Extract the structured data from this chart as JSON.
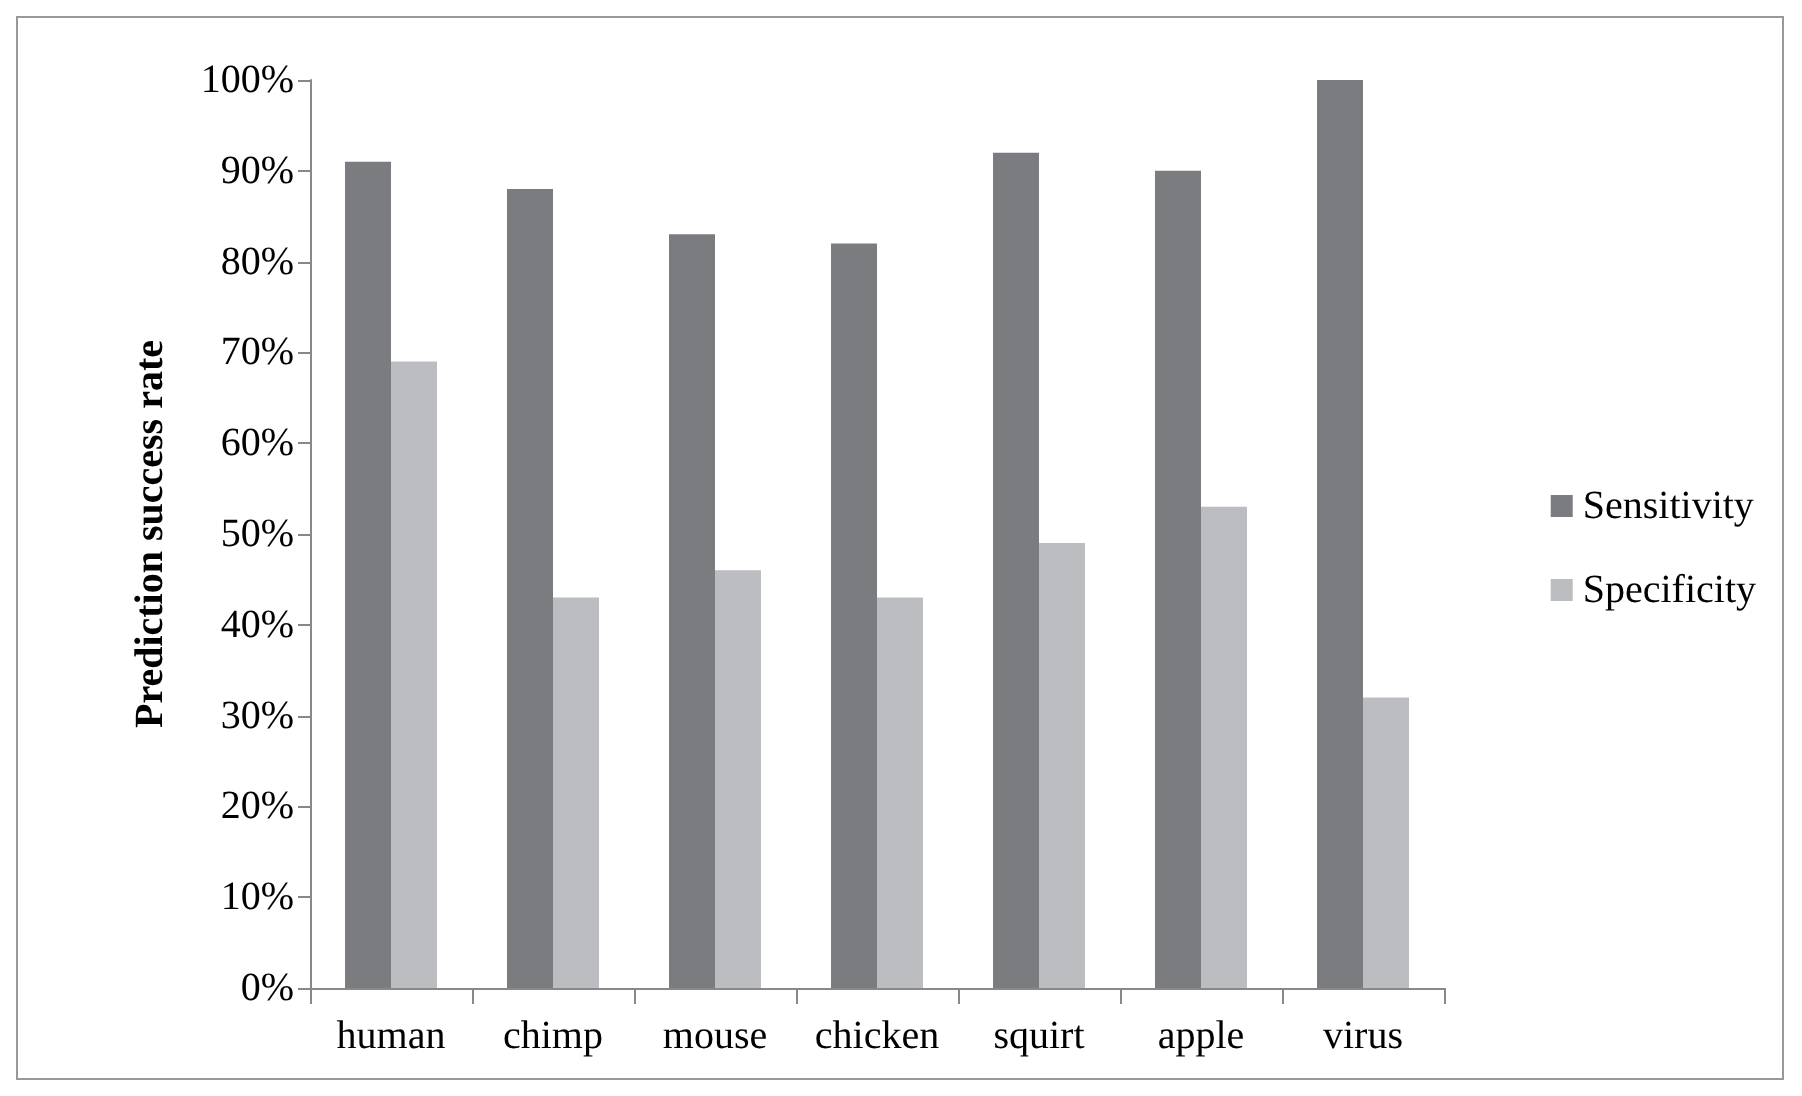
{
  "chart_data": {
    "type": "bar",
    "ylabel": "Prediction success rate",
    "categories": [
      "human",
      "chimp",
      "mouse",
      "chicken",
      "squirt",
      "apple",
      "virus"
    ],
    "series": [
      {
        "name": "Sensitivity",
        "color": "#7b7c80",
        "values": [
          91,
          88,
          83,
          82,
          92,
          90,
          100
        ]
      },
      {
        "name": "Specificity",
        "color": "#bcbdc1",
        "values": [
          69,
          43,
          46,
          43,
          49,
          53,
          32
        ]
      }
    ],
    "ylim": [
      0,
      100
    ],
    "yticks": [
      {
        "value": 0,
        "label": "0%"
      },
      {
        "value": 10,
        "label": "10%"
      },
      {
        "value": 20,
        "label": "20%"
      },
      {
        "value": 30,
        "label": "30%"
      },
      {
        "value": 40,
        "label": "40%"
      },
      {
        "value": 50,
        "label": "50%"
      },
      {
        "value": 60,
        "label": "60%"
      },
      {
        "value": 70,
        "label": "70%"
      },
      {
        "value": 80,
        "label": "80%"
      },
      {
        "value": 90,
        "label": "90%"
      },
      {
        "value": 100,
        "label": "100%"
      }
    ],
    "grid": false,
    "legend": "right"
  }
}
